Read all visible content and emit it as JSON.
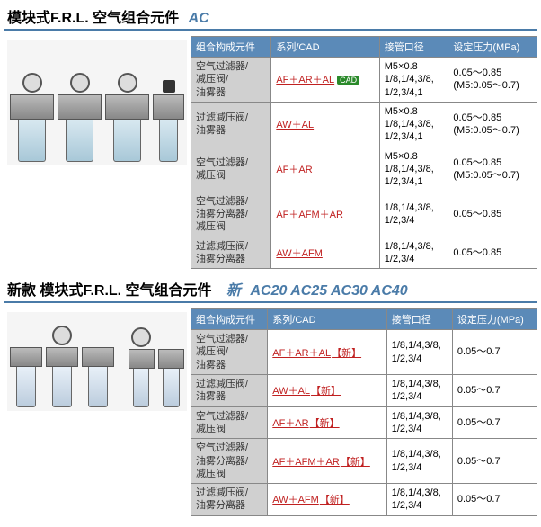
{
  "section1": {
    "title_main": "模块式F.R.L. 空气组合元件",
    "title_code": "AC",
    "headers": [
      "组合构成元件",
      "系列/CAD",
      "接管口径",
      "设定压力(MPa)"
    ],
    "rows": [
      {
        "comp": "空气过滤器/\n减压阀/\n油雾器",
        "series_text": "AF＋AR＋AL",
        "series_href": "#",
        "has_cad": true,
        "cad_text": "CAD",
        "new_text": "",
        "port": "M5×0.8\n1/8,1/4,3/8,\n1/2,3/4,1",
        "press": "0.05～0.85\n(M5:0.05～0.7)"
      },
      {
        "comp": "过滤减压阀/\n油雾器",
        "series_text": "AW＋AL",
        "series_href": "#",
        "has_cad": false,
        "cad_text": "",
        "new_text": "",
        "port": "M5×0.8\n1/8,1/4,3/8,\n1/2,3/4,1",
        "press": "0.05～0.85\n(M5:0.05～0.7)"
      },
      {
        "comp": "空气过滤器/\n减压阀",
        "series_text": "AF＋AR",
        "series_href": "#",
        "has_cad": false,
        "cad_text": "",
        "new_text": "",
        "port": "M5×0.8\n1/8,1/4,3/8,\n1/2,3/4,1",
        "press": "0.05～0.85\n(M5:0.05～0.7)"
      },
      {
        "comp": "空气过滤器/\n油雾分离器/\n减压阀",
        "series_text": "AF＋AFM＋AR",
        "series_href": "#",
        "has_cad": false,
        "cad_text": "",
        "new_text": "",
        "port": "1/8,1/4,3/8,\n1/2,3/4",
        "press": "0.05～0.85"
      },
      {
        "comp": "过滤减压阀/\n油雾分离器",
        "series_text": "AW＋AFM",
        "series_href": "#",
        "has_cad": false,
        "cad_text": "",
        "new_text": "",
        "port": "1/8,1/4,3/8,\n1/2,3/4",
        "press": "0.05～0.85"
      }
    ]
  },
  "section2": {
    "title_main": "新款 模块式F.R.L. 空气组合元件",
    "title_new": "新",
    "title_codes": "AC20 AC25 AC30 AC40",
    "headers": [
      "组合构成元件",
      "系列/CAD",
      "接管口径",
      "设定压力(MPa)"
    ],
    "rows": [
      {
        "comp": "空气过滤器/\n减压阀/\n油雾器",
        "series_text": "AF＋AR＋AL",
        "series_href": "#",
        "has_cad": false,
        "cad_text": "",
        "new_text": "【新】",
        "port": "1/8,1/4,3/8,\n1/2,3/4",
        "press": "0.05～0.7"
      },
      {
        "comp": "过滤减压阀/\n油雾器",
        "series_text": "AW＋AL",
        "series_href": "#",
        "has_cad": false,
        "cad_text": "",
        "new_text": "【新】",
        "port": "1/8,1/4,3/8,\n1/2,3/4",
        "press": "0.05～0.7"
      },
      {
        "comp": "空气过滤器/\n减压阀",
        "series_text": "AF＋AR",
        "series_href": "#",
        "has_cad": false,
        "cad_text": "",
        "new_text": "【新】",
        "port": "1/8,1/4,3/8,\n1/2,3/4",
        "press": "0.05～0.7"
      },
      {
        "comp": "空气过滤器/\n油雾分离器/\n减压阀",
        "series_text": "AF＋AFM＋AR",
        "series_href": "#",
        "has_cad": false,
        "cad_text": "",
        "new_text": "【新】",
        "port": "1/8,1/4,3/8,\n1/2,3/4",
        "press": "0.05～0.7"
      },
      {
        "comp": "过滤减压阀/\n油雾分离器",
        "series_text": "AW＋AFM",
        "series_href": "#",
        "has_cad": false,
        "cad_text": "",
        "new_text": "【新】",
        "port": "1/8,1/4,3/8,\n1/2,3/4",
        "press": "0.05～0.7"
      }
    ]
  }
}
